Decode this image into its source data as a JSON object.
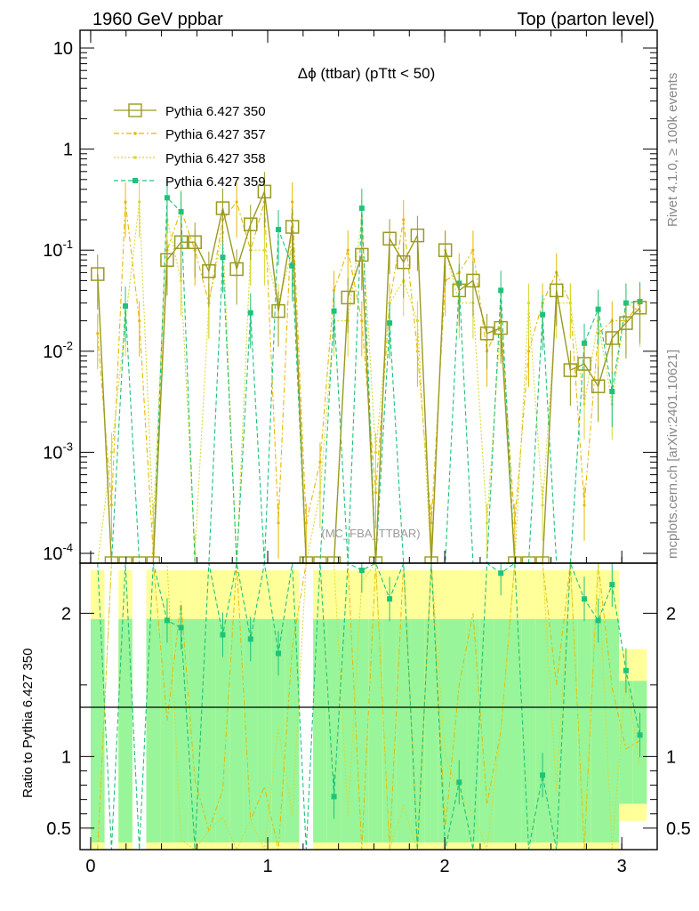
{
  "header": {
    "left": "1960 GeV ppbar",
    "right": "Top (parton level)"
  },
  "side_labels": {
    "rivet": "Rivet 4.1.0, ≥ 100k events",
    "mcplots": "mcplots.cern.ch [arXiv:2401.10621]"
  },
  "watermark": "(MC_FBA_TTBAR)",
  "colors": {
    "s350": "#9a9a20",
    "s357": "#e6b800",
    "s358": "#d8d830",
    "s359": "#1ec37a",
    "band_green": "#99f599",
    "band_yellow": "#ffff99"
  },
  "chart_data": {
    "type": "line",
    "title": "Δϕ (ttbar) (pTtt < 50)",
    "xlabel": "",
    "ylabel_main": "",
    "ylabel_ratio": "Ratio to Pythia 6.427 350",
    "xlim": [
      -0.06,
      3.2
    ],
    "ylim": [
      8e-05,
      15
    ],
    "yscale": "log",
    "ratio_ylim": [
      0.35,
      2.35
    ],
    "x_ticks": [
      "0",
      "1",
      "2",
      "3"
    ],
    "y_ticks": [
      "10^{-4}",
      "10^{-3}",
      "10^{-2}",
      "10^{-1}",
      "1",
      "10"
    ],
    "ratio_ticks": [
      "0.5",
      "1",
      "2"
    ],
    "legend_position": "top-left",
    "x": [
      0.0393,
      0.1178,
      0.1963,
      0.2749,
      0.3534,
      0.432,
      0.5105,
      0.589,
      0.6676,
      0.7461,
      0.8247,
      0.9032,
      0.9817,
      1.0603,
      1.1388,
      1.2174,
      1.2959,
      1.3744,
      1.453,
      1.5315,
      1.6101,
      1.6886,
      1.7671,
      1.8457,
      1.9242,
      2.0028,
      2.0813,
      2.1598,
      2.2384,
      2.3169,
      2.3955,
      2.474,
      2.5525,
      2.6311,
      2.7096,
      2.7882,
      2.8667,
      2.9452,
      3.0238,
      3.1023
    ],
    "series": [
      {
        "name": "Pythia 6.427 350",
        "values": [
          0.058,
          7e-05,
          7e-05,
          7e-05,
          7e-05,
          0.08,
          0.12,
          0.12,
          0.062,
          0.26,
          0.065,
          0.18,
          0.38,
          0.025,
          0.17,
          7e-05,
          7e-05,
          7e-05,
          0.034,
          0.09,
          7e-05,
          0.13,
          0.076,
          0.14,
          7e-05,
          0.1,
          0.04,
          0.05,
          0.015,
          0.017,
          7e-05,
          7e-05,
          7e-05,
          0.04,
          0.0065,
          0.0075,
          0.0045,
          0.0135,
          0.019,
          0.027
        ]
      },
      {
        "name": "Pythia 6.427 357",
        "values": [
          0.015,
          0.0003,
          0.3,
          0.02,
          0.0001,
          0.1,
          0.25,
          0.1,
          0.03,
          0.2,
          0.3,
          0.1,
          0.3,
          0.0002,
          0.3,
          0.0002,
          0.0008,
          0.04,
          0.1,
          0.02,
          0.0004,
          0.03,
          0.2,
          0.01,
          0.0002,
          0.05,
          0.06,
          0.1,
          0.01,
          0.02,
          0.0002,
          0.01,
          0.03,
          0.06,
          0.03,
          0.0003,
          0.015,
          0.02,
          0.02,
          0.03
        ]
      },
      {
        "name": "Pythia 6.427 358",
        "values": [
          7e-05,
          0.001,
          0.02,
          0.3,
          0.0002,
          0.2,
          0.05,
          0.0001,
          0.03,
          0.15,
          7e-05,
          0.1,
          0.1,
          0.03,
          0.1,
          7e-05,
          0.0004,
          0.02,
          0.02,
          0.2,
          0.001,
          0.03,
          0.05,
          0.02,
          7e-05,
          0.1,
          0.03,
          0.03,
          0.0002,
          0.02,
          7e-05,
          0.03,
          0.0003,
          0.03,
          0.03,
          0.003,
          0.02,
          0.003,
          0.03,
          0.025
        ]
      },
      {
        "name": "Pythia 6.427 359",
        "values": [
          7e-05,
          7e-05,
          0.028,
          7e-05,
          7e-05,
          0.33,
          0.24,
          7e-05,
          7e-05,
          0.085,
          7e-05,
          0.024,
          7e-05,
          0.16,
          0.07,
          7e-05,
          7e-05,
          0.025,
          7e-05,
          0.26,
          7e-05,
          0.019,
          7e-05,
          7e-05,
          7e-05,
          7e-05,
          0.047,
          7e-05,
          7e-05,
          0.04,
          7e-05,
          7e-05,
          0.023,
          7e-05,
          7e-05,
          0.012,
          0.026,
          0.004,
          0.03,
          0.031
        ]
      }
    ],
    "ratio_359": [
      null,
      null,
      null,
      null,
      null,
      1.95,
      1.9,
      null,
      null,
      1.85,
      null,
      1.82,
      null,
      1.72,
      null,
      null,
      null,
      0.72,
      null,
      2.3,
      null,
      2.1,
      null,
      null,
      null,
      null,
      0.82,
      null,
      null,
      2.28,
      null,
      null,
      0.87,
      null,
      null,
      2.1,
      1.95,
      2.2,
      1.6,
      1.15
    ],
    "band_green_halfwidth": [
      1.0,
      0.0,
      1.0,
      0.0,
      1.0,
      1.0,
      1.0,
      1.0,
      1.0,
      1.0,
      1.0,
      1.0,
      1.0,
      1.0,
      1.0,
      0.0,
      1.0,
      1.0,
      1.0,
      1.0,
      1.0,
      1.0,
      1.0,
      1.0,
      1.0,
      1.0,
      1.0,
      1.0,
      1.0,
      1.0,
      1.0,
      1.0,
      1.0,
      1.0,
      1.0,
      1.0,
      1.0,
      1.0,
      0.55,
      0.55
    ],
    "band_yellow_halfwidth": [
      1.3,
      0.0,
      1.3,
      0.0,
      1.3,
      1.3,
      1.3,
      1.3,
      1.3,
      1.3,
      1.3,
      1.3,
      1.3,
      1.3,
      1.3,
      0.0,
      1.3,
      1.3,
      1.3,
      1.3,
      1.3,
      1.3,
      1.3,
      1.3,
      1.3,
      1.3,
      1.3,
      1.3,
      1.3,
      1.3,
      1.3,
      1.3,
      1.3,
      1.3,
      1.3,
      1.3,
      1.3,
      1.3,
      0.75,
      0.75
    ]
  }
}
